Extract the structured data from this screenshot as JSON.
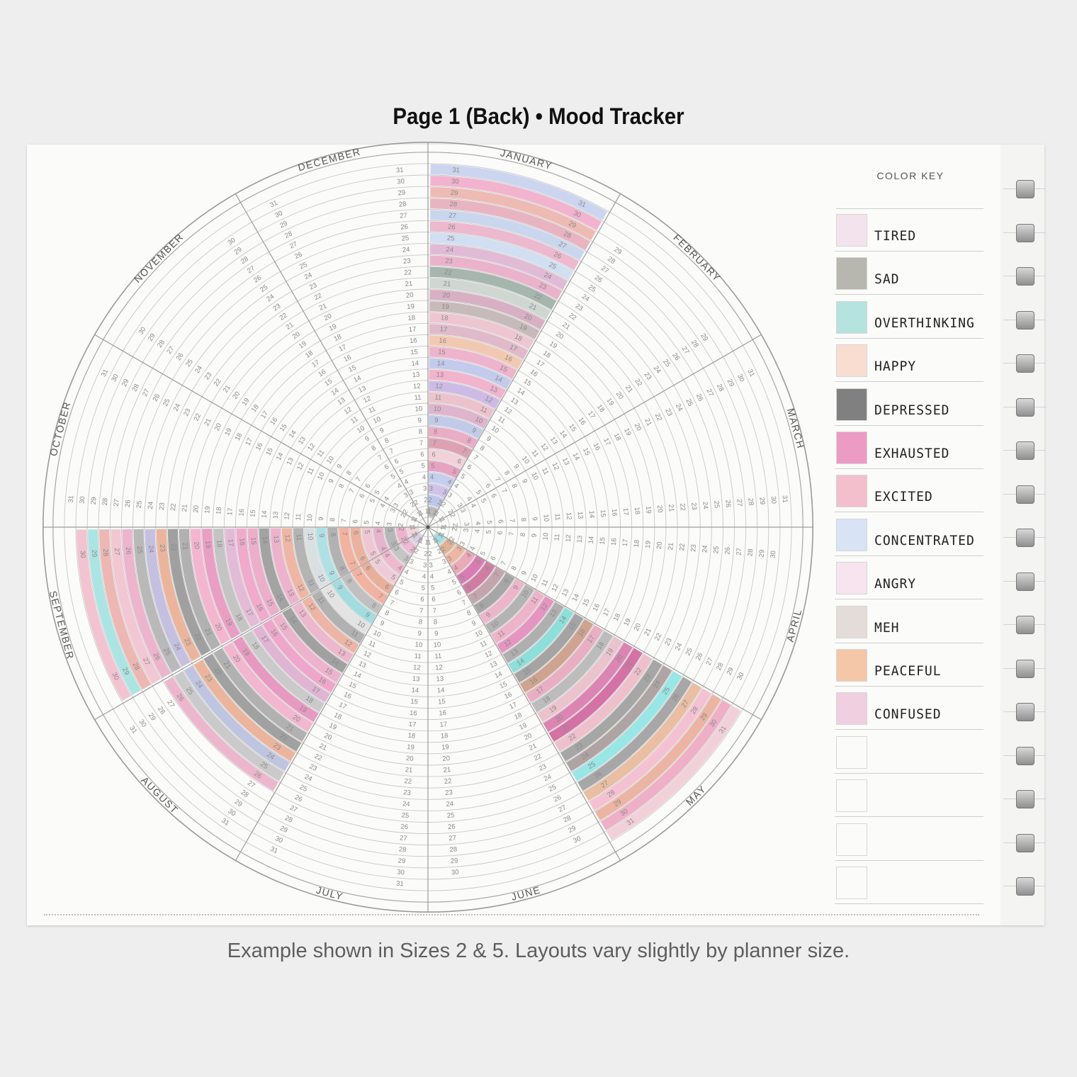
{
  "header": {
    "title": "Page 1 (Back) • Mood Tracker"
  },
  "caption": "Example shown in Sizes 2 & 5. Layouts vary slightly by planner size.",
  "wheel": {
    "months": [
      {
        "name": "JANUARY",
        "days": 31
      },
      {
        "name": "FEBRUARY",
        "days": 29
      },
      {
        "name": "MARCH",
        "days": 31
      },
      {
        "name": "APRIL",
        "days": 30
      },
      {
        "name": "MAY",
        "days": 31
      },
      {
        "name": "JUNE",
        "days": 30
      },
      {
        "name": "JULY",
        "days": 31
      },
      {
        "name": "AUGUST",
        "days": 31
      },
      {
        "name": "SEPTEMBER",
        "days": 30
      },
      {
        "name": "OCTOBER",
        "days": 31
      },
      {
        "name": "NOVEMBER",
        "days": 30
      },
      {
        "name": "DECEMBER",
        "days": 31
      }
    ],
    "filled": [
      {
        "month": "JANUARY",
        "colors": [
          "#a8a8a8",
          "#a9b8e6",
          "#c4b2e4",
          "#b7c1ea",
          "#e18bb1",
          "#f0c5cf",
          "#d4899f",
          "#e597b7",
          "#b2bce6",
          "#d7a0c0",
          "#e8b3bf",
          "#c2a9df",
          "#ef9fc0",
          "#b4bce7",
          "#ea9fc0",
          "#eebb9d",
          "#d9a8bd",
          "#eab7c6",
          "#b8a8a8",
          "#ce9bb4",
          "#c4ccc6",
          "#8fa29a",
          "#e69fbe",
          "#d8a9cc",
          "#c6d6ee",
          "#e8a6c1",
          "#bdcbea",
          "#e4a0b1",
          "#e9a9a0",
          "#ef9fc3",
          "#bfcaed"
        ]
      },
      {
        "month": "MAY",
        "colors": [
          "#8bd7d9",
          "#d79e7a",
          "#eba48b",
          "#e693a5",
          "#d0599f",
          "#c45a8c",
          "#b38d98",
          "#8e8e8e",
          "#e8a3bd",
          "#9f9f9f",
          "#e9a0bb",
          "#df7ab0",
          "#9a9a9a",
          "#6fd6d0",
          "#8c8c8c",
          "#c28a72",
          "#e39ab3",
          "#aaaaaa",
          "#e7b3c0",
          "#d3649d",
          "#c94c8d",
          "#e9b0bf",
          "#8e8e8e",
          "#9a8c8c",
          "#7ee0e0",
          "#8f8f8f",
          "#e6ad8a",
          "#f2b1c6",
          "#e8a08a",
          "#ea9ab8",
          "#f0c4cf"
        ]
      },
      {
        "month": "AUGUST",
        "colors": [
          "#d3c2dc",
          "#e8a8c9",
          "#b6b6b6",
          "#eaa5c0",
          "#ebbfcd",
          "#e59a80",
          "#ef9e86",
          "#b0b0b0",
          "#8bd4d9",
          "#dcdcdc",
          "#9c9c9c",
          "#e8a28d",
          "#e9a5c0",
          "#888888",
          "#e99fbf",
          "#eb8fbd",
          "#d8a0c8",
          "#bdbdbd",
          "#e17fb1",
          "#f0a3c3",
          "#9c9c9c",
          "#888888",
          "#e7a283",
          "#aeb6d9",
          "#bdbdbd",
          "#e8a4c0"
        ]
      },
      {
        "month": "SEPTEMBER",
        "colors": [
          "#f0c8d0",
          "#ea9fbf",
          "#a3a3a3",
          "#e2a0c1",
          "#ecb8c9",
          "#e59e85",
          "#ef9e86",
          "#9e9e9e",
          "#9ad8de",
          "#cfd8de",
          "#a0a0a0",
          "#eaa48d",
          "#e99fbf",
          "#8a8a8a",
          "#e89abb",
          "#ec93bf",
          "#dca9cc",
          "#b5b5b5",
          "#e485b5",
          "#f2a3c3",
          "#9c9c9c",
          "#878787",
          "#e7a283",
          "#b6b0d9",
          "#a6a6a6",
          "#e8a2c0",
          "#f0b8c8",
          "#e9a4a0",
          "#96dede",
          "#efb3c4"
        ]
      }
    ]
  },
  "color_key": {
    "title": "COLOR KEY",
    "items": [
      {
        "label": "TIRED",
        "color": "#f3e3ec"
      },
      {
        "label": "SAD",
        "color": "#b7b7b0"
      },
      {
        "label": "OVERTHINKING",
        "color": "#b5e3df"
      },
      {
        "label": "HAPPY",
        "color": "#f8ddd0"
      },
      {
        "label": "DEPRESSED",
        "color": "#808080"
      },
      {
        "label": "EXHAUSTED",
        "color": "#ec9cc4"
      },
      {
        "label": "EXCITED",
        "color": "#f3bfcc"
      },
      {
        "label": "CONCENTRATED",
        "color": "#d9e3f6"
      },
      {
        "label": "ANGRY",
        "color": "#f7e4ee"
      },
      {
        "label": "MEH",
        "color": "#e4dcd8"
      },
      {
        "label": "PEACEFUL",
        "color": "#f4c7a8"
      },
      {
        "label": "CONFUSED",
        "color": "#f0cfe0"
      },
      {
        "label": "",
        "color": "#fbfbf9"
      },
      {
        "label": "",
        "color": "#fbfbf9"
      },
      {
        "label": "",
        "color": "#fbfbf9"
      },
      {
        "label": "",
        "color": "#fbfbf9"
      }
    ]
  }
}
